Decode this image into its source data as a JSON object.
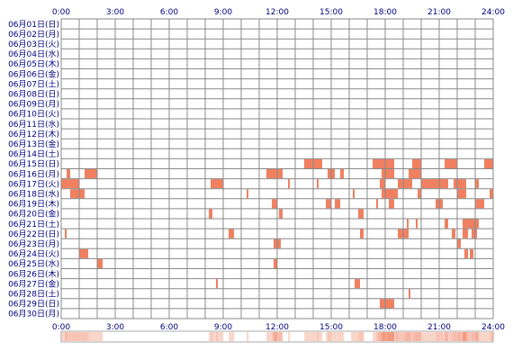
{
  "chart_data": {
    "type": "heatmap",
    "x_ticks": [
      "0:00",
      "3:00",
      "6:00",
      "9:00",
      "12:00",
      "15:00",
      "18:00",
      "21:00",
      "24:00"
    ],
    "xlim": [
      0,
      24
    ],
    "grid": true,
    "rows": [
      "06月01日(日)",
      "06月02日(月)",
      "06月03日(火)",
      "06月04日(水)",
      "06月05日(木)",
      "06月06日(金)",
      "06月07日(土)",
      "06月08日(日)",
      "06月09日(月)",
      "06月10日(火)",
      "06月11日(水)",
      "06月12日(木)",
      "06月13日(金)",
      "06月14日(土)",
      "06月15日(日)",
      "06月16日(月)",
      "06月17日(火)",
      "06月18日(水)",
      "06月19日(木)",
      "06月20日(金)",
      "06月21日(土)",
      "06月22日(日)",
      "06月23日(月)",
      "06月24日(火)",
      "06月25日(水)",
      "06月26日(木)",
      "06月27日(金)",
      "06月28日(土)",
      "06月29日(日)",
      "06月30日(月)"
    ],
    "colors": {
      "fill": "#f08060",
      "stroke": "#f07040",
      "grid": "#888888",
      "tick_text": "#000080"
    },
    "activity": [
      [],
      [],
      [],
      [],
      [],
      [],
      [],
      [],
      [],
      [],
      [],
      [],
      [],
      [],
      [
        [
          13.5,
          14.5
        ],
        [
          17.3,
          18.5
        ],
        [
          19.5,
          20
        ],
        [
          21.3,
          22
        ],
        [
          23.5,
          24
        ]
      ],
      [
        [
          0.3,
          0.5
        ],
        [
          1.3,
          2
        ],
        [
          11.4,
          12.3
        ],
        [
          14.8,
          15.2
        ],
        [
          15.5,
          15.7
        ],
        [
          17.8,
          18.5
        ],
        [
          19.3,
          20
        ]
      ],
      [
        [
          0,
          1
        ],
        [
          8.3,
          9
        ],
        [
          12.6,
          12.7
        ],
        [
          14.2,
          14.3
        ],
        [
          17.7,
          18
        ],
        [
          18.7,
          19.5
        ],
        [
          20,
          21.5
        ],
        [
          21.8,
          22.5
        ],
        [
          23,
          23.2
        ]
      ],
      [
        [
          0.5,
          1.3
        ],
        [
          10.3,
          10.4
        ],
        [
          16.2,
          16.3
        ],
        [
          17.8,
          18.7
        ],
        [
          19.8,
          20
        ],
        [
          22,
          22.5
        ],
        [
          23.8,
          24
        ]
      ],
      [
        [
          11.7,
          12
        ],
        [
          14.7,
          15
        ],
        [
          15.2,
          15.5
        ],
        [
          17.5,
          17.6
        ],
        [
          18.2,
          18.5
        ],
        [
          20.8,
          21.2
        ],
        [
          23,
          23.5
        ]
      ],
      [
        [
          8.2,
          8.4
        ],
        [
          12.1,
          12.3
        ],
        [
          16.5,
          16.8
        ]
      ],
      [
        [
          19.2,
          19.3
        ],
        [
          19.7,
          19.8
        ],
        [
          21.3,
          21.5
        ],
        [
          22.3,
          23.2
        ]
      ],
      [
        [
          0.2,
          0.3
        ],
        [
          9.3,
          9.6
        ],
        [
          16.6,
          16.8
        ],
        [
          18.7,
          19.3
        ],
        [
          21.7,
          21.9
        ],
        [
          22.3,
          22.6
        ],
        [
          22.8,
          23.1
        ]
      ],
      [
        [
          11.8,
          12.2
        ],
        [
          22,
          22.2
        ]
      ],
      [
        [
          1,
          1.5
        ],
        [
          22.4,
          22.6
        ],
        [
          22.7,
          22.9
        ]
      ],
      [
        [
          2,
          2.3
        ],
        [
          11.8,
          12
        ]
      ],
      [],
      [
        [
          8.6,
          8.7
        ],
        [
          16.3,
          16.6
        ]
      ],
      [
        [
          19.3,
          19.4
        ]
      ],
      [
        [
          17.7,
          18.5
        ]
      ],
      []
    ],
    "density_bar": {
      "note": ""
    }
  }
}
